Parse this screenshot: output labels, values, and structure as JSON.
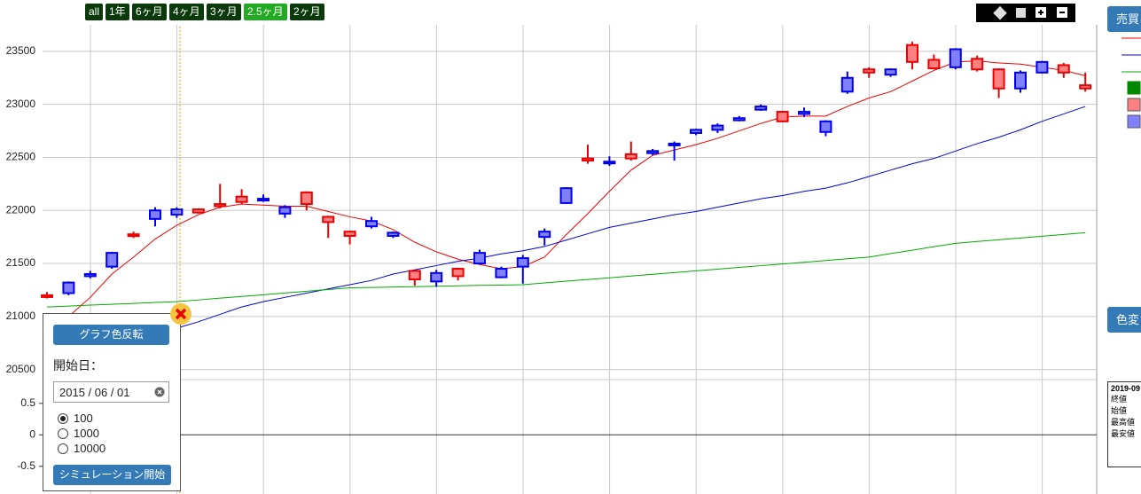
{
  "ranges": {
    "items": [
      "all",
      "1年",
      "6ヶ月",
      "4ヶ月",
      "3ヶ月",
      "2.5ヶ月",
      "2ヶ月"
    ],
    "active": 5
  },
  "right_buttons": {
    "trade": "売買",
    "color": "色変"
  },
  "legend_squares": [
    "#008800",
    "#ff8080",
    "#8080ff"
  ],
  "info_box": {
    "date": "2019-09",
    "labels": [
      "終値",
      "始値",
      "最高値",
      "最安値"
    ]
  },
  "panel": {
    "invert_button": "グラフ色反転",
    "start_label": "開始日：",
    "start_date": "2015 / 06 / 01",
    "amounts": [
      "100",
      "1000",
      "10000"
    ],
    "selected": 0,
    "run_button": "シミュレーション開始"
  },
  "chart_data": [
    {
      "type": "candlestick",
      "ylim": [
        20430,
        23750
      ],
      "yticks": [
        20500,
        21000,
        21500,
        22000,
        22500,
        23000,
        23500
      ],
      "grid": true,
      "up_color": "#0000ee",
      "up_fill": "#8080ff",
      "down_color": "#ee0000",
      "down_fill": "#ff8080",
      "open": [
        21200,
        21220,
        21380,
        21470,
        21775,
        21920,
        21960,
        22010,
        22060,
        22130,
        22100,
        21970,
        22170,
        21940,
        21800,
        21850,
        21760,
        21430,
        21330,
        21450,
        21500,
        21370,
        21470,
        21750,
        22070,
        22490,
        22450,
        22530,
        22540,
        22620,
        22730,
        22760,
        22850,
        22950,
        22930,
        22910,
        22740,
        23120,
        23330,
        23280,
        23560,
        23420,
        23350,
        23430,
        23330,
        23150,
        23300,
        23370,
        23180
      ],
      "high": [
        21230,
        21330,
        21430,
        21610,
        21800,
        22030,
        22030,
        22020,
        22250,
        22200,
        22150,
        22050,
        22180,
        21950,
        21810,
        21940,
        21800,
        21440,
        21440,
        21460,
        21630,
        21470,
        21580,
        21830,
        22220,
        22620,
        22510,
        22650,
        22580,
        22650,
        22770,
        22820,
        22890,
        23000,
        22940,
        22970,
        22850,
        23310,
        23350,
        23340,
        23590,
        23470,
        23530,
        23460,
        23340,
        23320,
        23410,
        23390,
        23300
      ],
      "low": [
        21170,
        21200,
        21360,
        21450,
        21740,
        21850,
        21930,
        21970,
        22020,
        22060,
        22080,
        21930,
        22000,
        21740,
        21680,
        21830,
        21740,
        21290,
        21280,
        21340,
        21490,
        21360,
        21310,
        21670,
        22060,
        22440,
        22420,
        22470,
        22520,
        22470,
        22710,
        22730,
        22840,
        22940,
        22830,
        22880,
        22700,
        23100,
        23250,
        23260,
        23330,
        23330,
        23330,
        23310,
        23060,
        23110,
        23290,
        23250,
        23120
      ],
      "close": [
        21195,
        21320,
        21400,
        21600,
        21760,
        22000,
        22010,
        21980,
        22040,
        22080,
        22110,
        22030,
        22060,
        21890,
        21760,
        21900,
        21790,
        21350,
        21410,
        21380,
        21600,
        21450,
        21550,
        21800,
        22210,
        22470,
        22460,
        22490,
        22560,
        22630,
        22760,
        22800,
        22870,
        22980,
        22840,
        22930,
        22840,
        23250,
        23300,
        23330,
        23400,
        23340,
        23520,
        23330,
        23150,
        23300,
        23400,
        23300,
        23150
      ],
      "series": [
        {
          "color": "#ee0000",
          "values": [
            null,
            21000,
            21180,
            21400,
            21560,
            21730,
            21860,
            21960,
            22030,
            22060,
            22050,
            22040,
            22040,
            21990,
            21940,
            21900,
            21820,
            21700,
            21610,
            21540,
            21490,
            21450,
            21470,
            21560,
            21770,
            21970,
            22180,
            22380,
            22520,
            22570,
            22620,
            22680,
            22750,
            22820,
            22880,
            22890,
            22890,
            22980,
            23060,
            23120,
            23220,
            23320,
            23400,
            23410,
            23390,
            23380,
            23350,
            23320,
            23270
          ]
        },
        {
          "color": "#0000dd",
          "values": [
            null,
            null,
            null,
            null,
            null,
            null,
            20890,
            20950,
            21020,
            21090,
            21140,
            21180,
            21220,
            21260,
            21300,
            21340,
            21400,
            21440,
            21480,
            21520,
            21550,
            21590,
            21620,
            21660,
            21720,
            21780,
            21840,
            21880,
            21920,
            21960,
            21990,
            22030,
            22070,
            22110,
            22140,
            22180,
            22210,
            22260,
            22320,
            22380,
            22440,
            22490,
            22560,
            22630,
            22690,
            22760,
            22840,
            22910,
            22980
          ]
        },
        {
          "color": "#00aa00",
          "values": [
            21090,
            21098,
            21107,
            21115,
            21123,
            21132,
            21140,
            21156,
            21173,
            21189,
            21205,
            21221,
            21238,
            21254,
            21270,
            21274,
            21278,
            21281,
            21285,
            21289,
            21293,
            21296,
            21300,
            21316,
            21333,
            21349,
            21365,
            21381,
            21398,
            21414,
            21430,
            21446,
            21463,
            21479,
            21495,
            21511,
            21528,
            21544,
            21560,
            21593,
            21625,
            21658,
            21690,
            21707,
            21723,
            21740,
            21757,
            21773,
            21790
          ]
        }
      ]
    },
    {
      "type": "line",
      "ylim": [
        -0.94,
        0.85
      ],
      "yticks": [
        0.5,
        0,
        -0.5
      ],
      "zero_line": true
    }
  ]
}
